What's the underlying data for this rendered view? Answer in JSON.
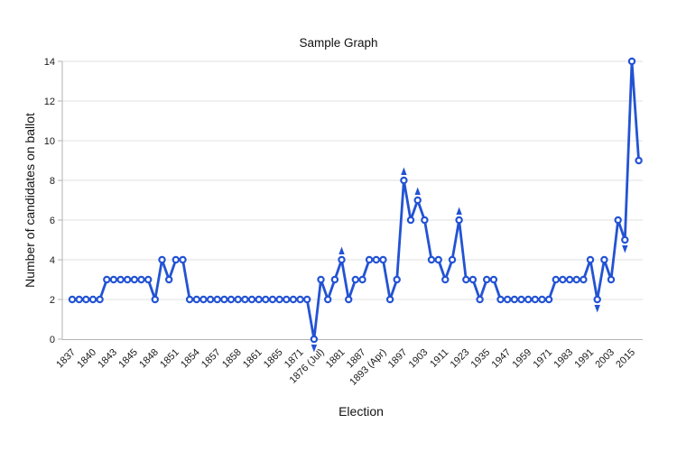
{
  "chart_data": {
    "type": "line",
    "title": "Sample Graph",
    "xlabel": "Election",
    "ylabel": "Number of candidates on ballot",
    "ylim": [
      0,
      14
    ],
    "yticks": [
      0,
      2,
      4,
      6,
      8,
      10,
      12,
      14
    ],
    "grid": true,
    "legend": "none",
    "x_tick_labels": [
      "1837",
      "1840",
      "1843",
      "1845",
      "1848",
      "1851",
      "1854",
      "1857",
      "1858",
      "1861",
      "1865",
      "1871",
      "1876 (Jul)",
      "1881",
      "1887",
      "1893 (Apr)",
      "1897",
      "1903",
      "1911",
      "1923",
      "1935",
      "1947",
      "1959",
      "1971",
      "1983",
      "1991",
      "2003",
      "2015"
    ],
    "x_label_every": 3,
    "n_points": 83,
    "values": [
      2,
      2,
      2,
      2,
      2,
      3,
      3,
      3,
      3,
      3,
      3,
      3,
      2,
      4,
      3,
      4,
      4,
      2,
      2,
      2,
      2,
      2,
      2,
      2,
      2,
      2,
      2,
      2,
      2,
      2,
      2,
      2,
      2,
      2,
      2,
      0,
      3,
      2,
      3,
      4,
      2,
      3,
      3,
      4,
      4,
      4,
      2,
      3,
      8,
      6,
      7,
      6,
      4,
      4,
      3,
      4,
      6,
      3,
      3,
      2,
      3,
      3,
      2,
      2,
      2,
      2,
      2,
      2,
      2,
      2,
      3,
      3,
      3,
      3,
      3,
      4,
      2,
      4,
      3,
      6,
      5,
      14,
      9
    ],
    "annotations": [
      {
        "index": 35,
        "direction": "down"
      },
      {
        "index": 39,
        "direction": "up"
      },
      {
        "index": 48,
        "direction": "up"
      },
      {
        "index": 50,
        "direction": "up"
      },
      {
        "index": 56,
        "direction": "up"
      },
      {
        "index": 76,
        "direction": "down"
      },
      {
        "index": 80,
        "direction": "down"
      }
    ],
    "colors": {
      "line": "#2353d4",
      "marker_fill": "#ffffff",
      "grid": "#e2e2e2",
      "axis": "#b3b3b3",
      "text": "#1a1a1a"
    }
  }
}
